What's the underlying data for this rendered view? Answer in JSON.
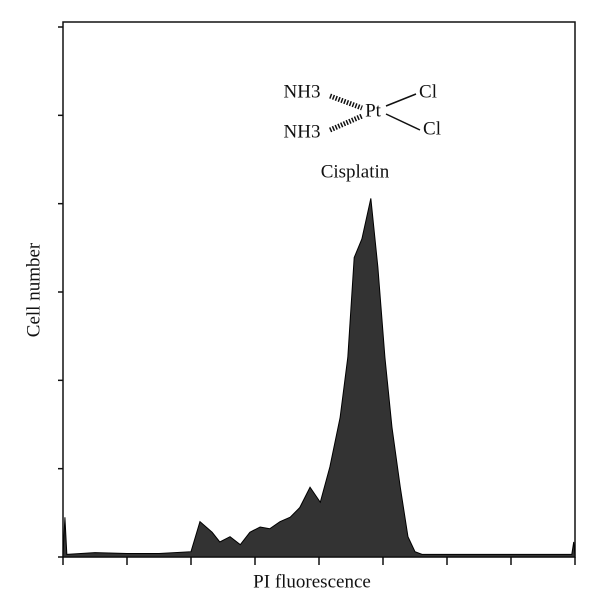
{
  "chart_data": {
    "type": "area",
    "x_label": "PI fluorescence",
    "y_label": "Cell number",
    "annotations": [
      "NH3",
      "NH3",
      "Pt",
      "Cl",
      "Cl",
      "Cisplatin"
    ],
    "x": [
      0,
      0.03,
      0.06,
      0.5,
      1.0,
      1.5,
      2.0,
      2.14,
      2.33,
      2.45,
      2.61,
      2.77,
      2.92,
      3.08,
      3.23,
      3.39,
      3.55,
      3.7,
      3.86,
      4.02,
      4.17,
      4.33,
      4.45,
      4.55,
      4.67,
      4.81,
      4.92,
      5.03,
      5.14,
      5.27,
      5.39,
      5.5,
      5.61,
      6.0,
      7.0,
      7.95,
      7.98,
      8.0
    ],
    "values": [
      0.02,
      0.45,
      0.03,
      0.05,
      0.04,
      0.04,
      0.06,
      0.4,
      0.28,
      0.17,
      0.23,
      0.14,
      0.28,
      0.34,
      0.32,
      0.4,
      0.45,
      0.56,
      0.79,
      0.62,
      1.02,
      1.58,
      2.26,
      3.39,
      3.6,
      4.06,
      3.28,
      2.26,
      1.47,
      0.79,
      0.23,
      0.06,
      0.03,
      0.03,
      0.03,
      0.03,
      0.17,
      0.02
    ],
    "color": "#333333",
    "xlim": [
      0,
      8
    ],
    "xticks": [
      0,
      1,
      2,
      3,
      4,
      5,
      6,
      7,
      8
    ],
    "ylim": [
      0,
      6
    ],
    "yticks": [
      0,
      1,
      2,
      3,
      4,
      5,
      6
    ]
  }
}
